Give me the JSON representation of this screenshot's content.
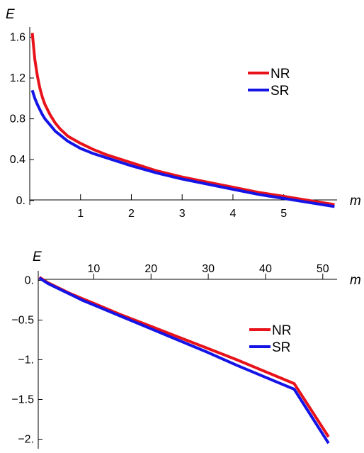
{
  "chart_data": [
    {
      "type": "line",
      "xlabel": "m",
      "ylabel": "E",
      "xlim": [
        0.0,
        6.05
      ],
      "ylim": [
        -0.05,
        1.7
      ],
      "x_ticks": [
        1,
        2,
        3,
        4,
        5
      ],
      "x_tick_labels": [
        "1",
        "2",
        "3",
        "4",
        "5"
      ],
      "y_ticks": [
        0.0,
        0.4,
        0.8,
        1.2,
        1.6
      ],
      "y_tick_labels": [
        "0.",
        "0.4",
        "0.8",
        "1.2",
        "1.6"
      ],
      "grid": false,
      "legend_position": "right",
      "series": [
        {
          "name": "NR",
          "color": "#e8121a",
          "x": [
            0.05,
            0.1,
            0.15,
            0.2,
            0.25,
            0.3,
            0.4,
            0.5,
            0.6,
            0.75,
            1.0,
            1.25,
            1.5,
            2.0,
            2.5,
            3.0,
            3.5,
            4.0,
            4.5,
            5.0,
            5.5,
            6.0
          ],
          "y": [
            1.64,
            1.38,
            1.22,
            1.1,
            1.01,
            0.94,
            0.84,
            0.76,
            0.7,
            0.63,
            0.56,
            0.5,
            0.45,
            0.37,
            0.29,
            0.23,
            0.18,
            0.13,
            0.08,
            0.04,
            0.0,
            -0.04
          ]
        },
        {
          "name": "SR",
          "color": "#1414e6",
          "x": [
            0.05,
            0.1,
            0.15,
            0.2,
            0.25,
            0.3,
            0.4,
            0.5,
            0.6,
            0.75,
            1.0,
            1.25,
            1.5,
            2.0,
            2.5,
            3.0,
            3.5,
            4.0,
            4.5,
            5.0,
            5.5,
            6.0
          ],
          "y": [
            1.08,
            1.0,
            0.94,
            0.89,
            0.84,
            0.8,
            0.74,
            0.68,
            0.64,
            0.58,
            0.51,
            0.46,
            0.42,
            0.34,
            0.27,
            0.21,
            0.16,
            0.11,
            0.06,
            0.02,
            -0.02,
            -0.06
          ]
        }
      ]
    },
    {
      "type": "line",
      "xlabel": "m",
      "ylabel": "E",
      "xlim": [
        0.3,
        52.5
      ],
      "ylim": [
        -2.12,
        0.12
      ],
      "x_ticks": [
        10,
        20,
        30,
        40,
        50
      ],
      "x_tick_labels": [
        "10",
        "20",
        "30",
        "40",
        "50"
      ],
      "y_ticks": [
        0.0,
        -0.5,
        -1.0,
        -1.5,
        -2.0
      ],
      "y_tick_labels": [
        "0.",
        "-0.5",
        "-1.",
        "-1.5",
        "-2."
      ],
      "grid": false,
      "legend_position": "right",
      "series": [
        {
          "name": "NR",
          "color": "#e8121a",
          "x": [
            0.5,
            2,
            4,
            6,
            8,
            10,
            15,
            20,
            25,
            30,
            35,
            40,
            45,
            51
          ],
          "y": [
            0.04,
            -0.03,
            -0.1,
            -0.17,
            -0.23,
            -0.29,
            -0.44,
            -0.58,
            -0.72,
            -0.86,
            -1.0,
            -1.15,
            -1.3,
            -1.97
          ]
        },
        {
          "name": "SR",
          "color": "#1414e6",
          "x": [
            0.5,
            2,
            4,
            6,
            8,
            10,
            15,
            20,
            25,
            30,
            35,
            40,
            45,
            51
          ],
          "y": [
            0.03,
            -0.04,
            -0.11,
            -0.18,
            -0.25,
            -0.31,
            -0.46,
            -0.61,
            -0.76,
            -0.91,
            -1.07,
            -1.22,
            -1.37,
            -2.05
          ]
        }
      ]
    }
  ]
}
